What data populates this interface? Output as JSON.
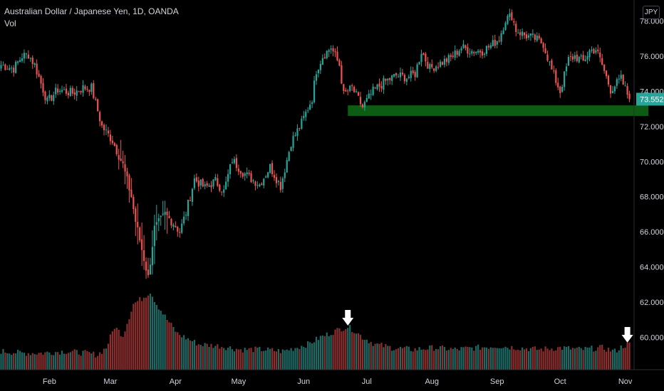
{
  "legend": {
    "symbol_line": "Australian Dollar / Japanese Yen, 1D, OANDA",
    "volume_label": "Vol"
  },
  "currency_badge": "JPY",
  "colors": {
    "up": "#26a69a",
    "down": "#ef5350",
    "vol_up": "#1e6b66",
    "vol_down": "#8c2f2e",
    "support_zone": "#0d5c14",
    "price_tag": "#26a69a",
    "arrow": "#ffffff"
  },
  "last_price_label": "73.552",
  "chart_data": {
    "type": "candlestick",
    "title": "Australian Dollar / Japanese Yen, 1D, OANDA",
    "y_axis": {
      "ticks": [
        "78.000",
        "76.000",
        "74.000",
        "72.000",
        "70.000",
        "68.000",
        "66.000",
        "64.000",
        "62.000",
        "60.000"
      ],
      "ylim": [
        58.15,
        79.2
      ]
    },
    "x_axis": {
      "ticks": [
        "Feb",
        "Mar",
        "Apr",
        "May",
        "Jun",
        "Jul",
        "Aug",
        "Sep",
        "Oct",
        "Nov"
      ],
      "tick_day_index": [
        23,
        52,
        83,
        113,
        144,
        174,
        205,
        236,
        266,
        297
      ]
    },
    "last_price": 73.552,
    "support_zone": {
      "y_from": 72.6,
      "y_to": 73.2,
      "from_day_index": 165,
      "to_day_index": 308
    },
    "volume_peak_markers_day_index": [
      165,
      298
    ],
    "close_anchors": [
      [
        0,
        75.5
      ],
      [
        6,
        75.3
      ],
      [
        10,
        76.0
      ],
      [
        13,
        76.1
      ],
      [
        16,
        75.5
      ],
      [
        22,
        73.4
      ],
      [
        27,
        74.1
      ],
      [
        34,
        73.9
      ],
      [
        39,
        74.2
      ],
      [
        43,
        74.2
      ],
      [
        48,
        72.0
      ],
      [
        53,
        71.2
      ],
      [
        58,
        69.8
      ],
      [
        62,
        68.0
      ],
      [
        64,
        66.6
      ],
      [
        67,
        65.0
      ],
      [
        70,
        63.4
      ],
      [
        73,
        66.2
      ],
      [
        78,
        67.0
      ],
      [
        82,
        66.5
      ],
      [
        85,
        66.0
      ],
      [
        88,
        67.1
      ],
      [
        92,
        69.0
      ],
      [
        97,
        68.5
      ],
      [
        102,
        68.9
      ],
      [
        106,
        68.3
      ],
      [
        110,
        70.1
      ],
      [
        115,
        69.4
      ],
      [
        118,
        69.1
      ],
      [
        123,
        68.7
      ],
      [
        128,
        69.7
      ],
      [
        133,
        68.6
      ],
      [
        138,
        71.1
      ],
      [
        143,
        72.2
      ],
      [
        148,
        73.6
      ],
      [
        150,
        75.2
      ],
      [
        153,
        76.0
      ],
      [
        157,
        76.5
      ],
      [
        161,
        75.5
      ],
      [
        163,
        73.8
      ],
      [
        167,
        74.2
      ],
      [
        172,
        73.1
      ],
      [
        177,
        74.0
      ],
      [
        182,
        74.5
      ],
      [
        188,
        74.9
      ],
      [
        193,
        74.8
      ],
      [
        197,
        75.0
      ],
      [
        200,
        76.3
      ],
      [
        204,
        75.3
      ],
      [
        209,
        75.6
      ],
      [
        214,
        75.9
      ],
      [
        219,
        76.5
      ],
      [
        224,
        76.3
      ],
      [
        229,
        76.3
      ],
      [
        233,
        76.6
      ],
      [
        237,
        77.0
      ],
      [
        240,
        78.1
      ],
      [
        243,
        78.3
      ],
      [
        245,
        77.5
      ],
      [
        249,
        77.2
      ],
      [
        254,
        77.0
      ],
      [
        258,
        76.7
      ],
      [
        262,
        75.2
      ],
      [
        266,
        74.0
      ],
      [
        270,
        75.8
      ],
      [
        273,
        76.0
      ],
      [
        277,
        75.7
      ],
      [
        280,
        76.3
      ],
      [
        283,
        76.4
      ],
      [
        286,
        75.5
      ],
      [
        290,
        74.1
      ],
      [
        295,
        74.7
      ],
      [
        299,
        73.552
      ]
    ],
    "volume_anchors": [
      [
        0,
        59.2
      ],
      [
        10,
        59.1
      ],
      [
        20,
        59.1
      ],
      [
        30,
        59.2
      ],
      [
        40,
        59.1
      ],
      [
        46,
        59.0
      ],
      [
        50,
        59.4
      ],
      [
        54,
        60.6
      ],
      [
        58,
        60.1
      ],
      [
        63,
        61.9
      ],
      [
        67,
        62.2
      ],
      [
        71,
        62.6
      ],
      [
        74,
        61.9
      ],
      [
        79,
        61.0
      ],
      [
        84,
        60.2
      ],
      [
        89,
        59.9
      ],
      [
        94,
        59.6
      ],
      [
        104,
        59.5
      ],
      [
        114,
        59.3
      ],
      [
        124,
        59.3
      ],
      [
        134,
        59.2
      ],
      [
        140,
        59.4
      ],
      [
        146,
        59.6
      ],
      [
        152,
        60.0
      ],
      [
        158,
        60.3
      ],
      [
        162,
        60.5
      ],
      [
        165,
        60.6
      ],
      [
        168,
        60.4
      ],
      [
        172,
        60.0
      ],
      [
        178,
        59.6
      ],
      [
        186,
        59.4
      ],
      [
        196,
        59.3
      ],
      [
        206,
        59.4
      ],
      [
        216,
        59.3
      ],
      [
        226,
        59.4
      ],
      [
        236,
        59.5
      ],
      [
        246,
        59.4
      ],
      [
        256,
        59.3
      ],
      [
        266,
        59.4
      ],
      [
        276,
        59.3
      ],
      [
        286,
        59.4
      ],
      [
        292,
        59.2
      ],
      [
        296,
        59.5
      ],
      [
        299,
        59.6
      ]
    ]
  }
}
